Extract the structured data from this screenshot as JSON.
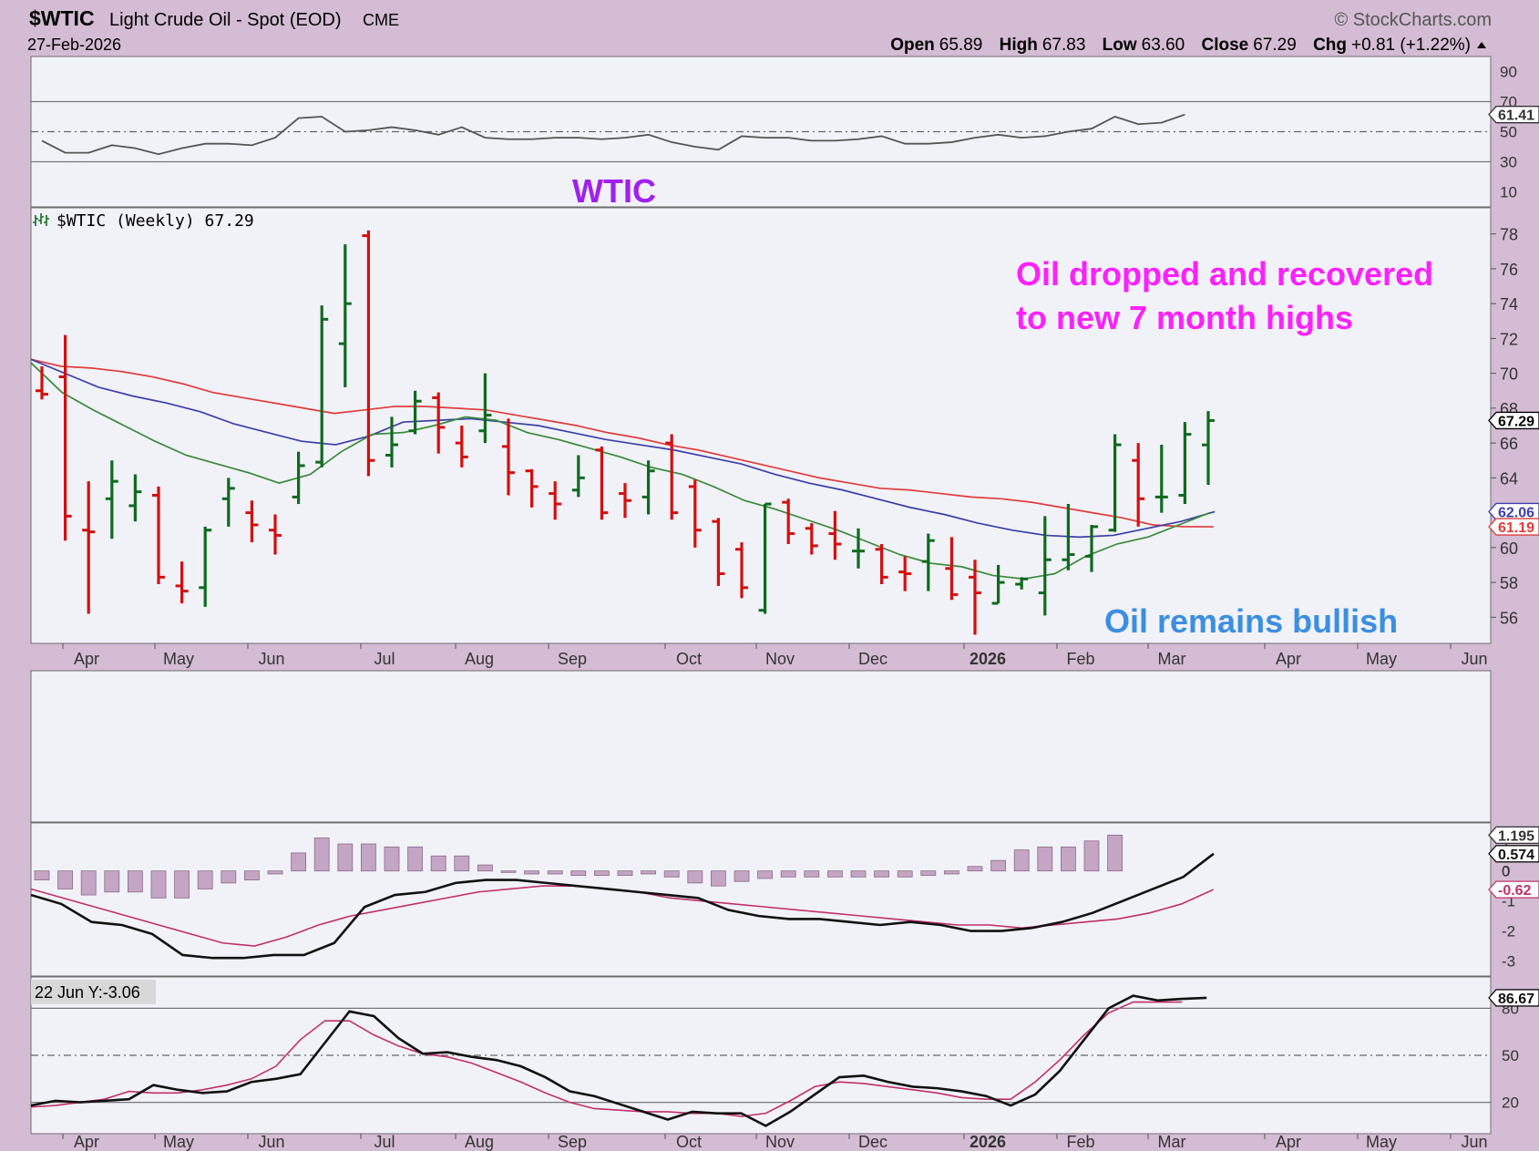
{
  "header": {
    "symbol": "$WTIC",
    "name": "Light Crude Oil - Spot (EOD)",
    "exchange": "CME",
    "copyright": "© StockCharts.com",
    "date": "27-Feb-2026",
    "ohlc_labels": [
      "Open",
      "High",
      "Low",
      "Close",
      "Chg"
    ],
    "ohlc_values": [
      "65.89",
      "67.83",
      "63.60",
      "67.29",
      "+0.81 (+1.22%)"
    ]
  },
  "colors": {
    "frame": "#d4bcd4",
    "panel": "#f1f1f8",
    "up": "#0e6b1e",
    "down": "#d40f0f",
    "ma_red": "#e03c3c",
    "ma_blue": "#3b3fa7",
    "ma_green": "#3a8a3a",
    "annot_purple": "#a020f0",
    "annot_magenta": "#ff20ff",
    "annot_blue": "#3b8ee0",
    "hist": "#c4a6c4"
  },
  "annotations": {
    "wtic": "WTIC",
    "oil_line1": "Oil dropped and recovered",
    "oil_line2": "to new 7 month highs",
    "bullish": "Oil remains bullish"
  },
  "price_panel_label": "$WTIC (Weekly) 67.29",
  "rsi_panel": {
    "ticks": [
      "90",
      "70",
      "50",
      "30",
      "10"
    ],
    "last_label": "61.41"
  },
  "macd_panel": {
    "ticks": [
      "1",
      "0",
      "-1",
      "-2",
      "-3"
    ],
    "labels": [
      "1.195",
      "0.574",
      "0",
      "-0.62"
    ]
  },
  "stoch_panel": {
    "tooltip": "22 Jun Y:-3.06",
    "ticks": [
      "80",
      "50",
      "20"
    ],
    "labels": [
      "86.67"
    ]
  },
  "price_axis": {
    "ticks": [
      "78",
      "76",
      "74",
      "72",
      "70",
      "68",
      "66",
      "64",
      "62",
      "60",
      "58",
      "56"
    ],
    "labels": [
      {
        "text": "67.29",
        "value": 67.29,
        "color": "#000000"
      },
      {
        "text": "62.06",
        "value": 62.06,
        "color": "#3b3fa7"
      },
      {
        "text": "61.19",
        "value": 61.19,
        "color": "#e03c3c"
      }
    ]
  },
  "x_axis": {
    "labels": [
      "Apr",
      "May",
      "Jun",
      "Jul",
      "Aug",
      "Sep",
      "Oct",
      "Nov",
      "Dec",
      "2026",
      "Feb",
      "Mar",
      "Apr",
      "May",
      "Jun"
    ]
  },
  "chart_data": [
    {
      "type": "line",
      "panel": "RSI",
      "ylim": [
        0,
        100
      ],
      "series": [
        {
          "values": [
            44,
            36,
            36,
            41,
            39,
            35,
            39,
            42,
            42,
            41,
            46,
            59,
            60,
            50,
            51,
            53,
            51,
            48,
            53,
            46,
            45,
            45,
            46,
            46,
            45,
            46,
            48,
            43,
            40,
            38,
            47,
            46,
            46,
            44,
            44,
            45,
            47,
            42,
            42,
            43,
            46,
            48,
            46,
            47,
            50,
            52,
            60,
            55,
            56,
            61.41
          ]
        }
      ]
    },
    {
      "type": "bar",
      "panel": "Price (weekly OHLC)",
      "ylim": [
        54.5,
        79.5
      ],
      "ohlc": [
        [
          69.0,
          70.4,
          68.5,
          68.8
        ],
        [
          69.8,
          72.2,
          60.4,
          61.8
        ],
        [
          61.0,
          63.8,
          56.2,
          60.9
        ],
        [
          62.8,
          65.0,
          60.5,
          63.8
        ],
        [
          62.4,
          64.2,
          61.5,
          63.2
        ],
        [
          63.0,
          63.5,
          57.9,
          58.3
        ],
        [
          57.8,
          59.2,
          56.8,
          57.5
        ],
        [
          57.7,
          61.2,
          56.6,
          61.0
        ],
        [
          62.8,
          64.0,
          61.2,
          63.4
        ],
        [
          62.0,
          62.7,
          60.3,
          61.3
        ],
        [
          61.0,
          61.9,
          59.6,
          60.7
        ],
        [
          62.9,
          65.5,
          62.5,
          64.7
        ],
        [
          64.9,
          73.9,
          64.6,
          73.1
        ],
        [
          71.7,
          77.4,
          69.2,
          74.0
        ],
        [
          77.9,
          78.2,
          64.1,
          65.0
        ],
        [
          65.3,
          67.5,
          64.6,
          65.9
        ],
        [
          66.7,
          69.0,
          66.5,
          68.4
        ],
        [
          68.6,
          68.9,
          65.4,
          66.9
        ],
        [
          66.0,
          67.0,
          64.6,
          65.2
        ],
        [
          66.7,
          70.0,
          66.0,
          67.6
        ],
        [
          65.8,
          67.4,
          63.0,
          64.3
        ],
        [
          64.4,
          64.5,
          62.3,
          63.5
        ],
        [
          63.1,
          63.8,
          61.6,
          62.5
        ],
        [
          63.3,
          65.3,
          62.9,
          64.0
        ],
        [
          65.6,
          65.8,
          61.6,
          62.0
        ],
        [
          63.1,
          63.7,
          61.7,
          62.7
        ],
        [
          62.9,
          65.0,
          61.9,
          64.4
        ],
        [
          66.0,
          66.5,
          61.6,
          62.0
        ],
        [
          63.5,
          63.9,
          60.0,
          61.0
        ],
        [
          61.5,
          61.7,
          57.8,
          58.5
        ],
        [
          59.9,
          60.3,
          57.1,
          57.7
        ],
        [
          56.4,
          62.5,
          56.2,
          62.5
        ],
        [
          62.6,
          62.8,
          60.2,
          60.8
        ],
        [
          61.1,
          61.4,
          59.6,
          60.1
        ],
        [
          60.8,
          62.1,
          59.3,
          60.2
        ],
        [
          59.8,
          61.1,
          58.8,
          59.8
        ],
        [
          59.9,
          60.2,
          57.9,
          58.3
        ],
        [
          58.6,
          59.5,
          57.5,
          58.5
        ],
        [
          59.2,
          60.8,
          57.5,
          60.4
        ],
        [
          58.8,
          60.6,
          57.0,
          57.3
        ],
        [
          58.3,
          59.3,
          55.0,
          57.4
        ],
        [
          56.8,
          59.0,
          56.8,
          58.0
        ],
        [
          57.9,
          58.3,
          57.6,
          58.2
        ],
        [
          57.4,
          61.8,
          56.1,
          59.3
        ],
        [
          59.3,
          62.5,
          58.7,
          59.6
        ],
        [
          59.5,
          61.3,
          58.6,
          61.2
        ],
        [
          61.0,
          66.5,
          60.9,
          65.9
        ],
        [
          65.0,
          66.0,
          61.2,
          62.8
        ],
        [
          62.9,
          65.9,
          62.0,
          62.9
        ],
        [
          63.0,
          67.2,
          62.5,
          66.5
        ],
        [
          65.89,
          67.83,
          63.6,
          67.29
        ]
      ],
      "series": [
        {
          "values": [
            70.8,
            70.4,
            70.3,
            70.1,
            69.8,
            69.4,
            68.9,
            68.6,
            68.3,
            68.0,
            67.7,
            67.9,
            68.1,
            68.1,
            68.0,
            67.9,
            67.6,
            67.3,
            67.0,
            66.6,
            66.3,
            65.9,
            65.6,
            65.2,
            64.8,
            64.4,
            64.0,
            63.7,
            63.4,
            63.3,
            63.1,
            62.9,
            62.8,
            62.6,
            62.3,
            62.0,
            61.7,
            61.3,
            61.2,
            61.19
          ]
        },
        {
          "values": [
            70.8,
            70.0,
            69.2,
            68.7,
            68.3,
            67.8,
            67.1,
            66.6,
            66.1,
            65.9,
            66.4,
            67.2,
            67.3,
            67.4,
            67.2,
            67.0,
            66.6,
            66.2,
            65.9,
            65.6,
            65.2,
            64.8,
            64.2,
            63.7,
            63.3,
            62.8,
            62.3,
            61.9,
            61.4,
            61.0,
            60.7,
            60.6,
            60.7,
            61.1,
            61.5,
            62.06
          ]
        },
        {
          "values": [
            70.6,
            68.9,
            67.9,
            67.0,
            66.1,
            65.3,
            64.8,
            64.3,
            63.7,
            64.2,
            65.5,
            66.5,
            66.6,
            67.0,
            67.5,
            67.3,
            66.6,
            66.2,
            65.7,
            65.2,
            64.6,
            64.2,
            63.5,
            62.7,
            62.2,
            61.6,
            61.0,
            60.3,
            59.6,
            59.1,
            58.9,
            58.4,
            58.2,
            58.5,
            59.5,
            60.2,
            60.6,
            61.3,
            62.0
          ]
        }
      ]
    },
    {
      "type": "line",
      "panel": "MACD",
      "ylim": [
        -3.5,
        1.6
      ],
      "series": [
        {
          "values": [
            -0.8,
            -1.1,
            -1.7,
            -1.8,
            -2.1,
            -2.8,
            -2.9,
            -2.9,
            -2.8,
            -2.8,
            -2.4,
            -1.2,
            -0.8,
            -0.7,
            -0.4,
            -0.3,
            -0.3,
            -0.4,
            -0.5,
            -0.6,
            -0.7,
            -0.8,
            -0.9,
            -1.3,
            -1.5,
            -1.6,
            -1.6,
            -1.7,
            -1.8,
            -1.7,
            -1.8,
            -2.0,
            -2.0,
            -1.9,
            -1.7,
            -1.4,
            -1.0,
            -0.6,
            -0.2,
            0.574
          ]
        },
        {
          "values": [
            -0.6,
            -0.9,
            -1.2,
            -1.5,
            -1.8,
            -2.1,
            -2.4,
            -2.5,
            -2.2,
            -1.8,
            -1.5,
            -1.3,
            -1.1,
            -0.9,
            -0.7,
            -0.6,
            -0.5,
            -0.5,
            -0.6,
            -0.7,
            -0.9,
            -1.0,
            -1.1,
            -1.2,
            -1.3,
            -1.4,
            -1.5,
            -1.6,
            -1.7,
            -1.8,
            -1.8,
            -1.9,
            -1.8,
            -1.7,
            -1.6,
            -1.4,
            -1.1,
            -0.62
          ]
        },
        {
          "values": [
            -0.3,
            -0.6,
            -0.8,
            -0.7,
            -0.7,
            -0.9,
            -0.9,
            -0.6,
            -0.4,
            -0.3,
            -0.1,
            0.6,
            1.1,
            0.9,
            0.9,
            0.8,
            0.8,
            0.5,
            0.5,
            0.2,
            -0.05,
            -0.1,
            -0.1,
            -0.15,
            -0.15,
            -0.15,
            -0.1,
            -0.2,
            -0.4,
            -0.5,
            -0.35,
            -0.25,
            -0.2,
            -0.2,
            -0.2,
            -0.2,
            -0.2,
            -0.2,
            -0.15,
            -0.1,
            0.15,
            0.35,
            0.7,
            0.8,
            0.8,
            1.0,
            1.195
          ]
        }
      ]
    },
    {
      "type": "line",
      "panel": "Stochastic",
      "ylim": [
        0,
        100
      ],
      "series": [
        {
          "values": [
            18,
            21,
            20,
            21,
            22,
            31,
            28,
            26,
            27,
            33,
            35,
            38,
            58,
            78,
            75,
            61,
            51,
            52,
            49,
            47,
            43,
            36,
            27,
            24,
            19,
            14,
            9,
            14,
            13,
            13,
            5,
            14,
            25,
            36,
            37,
            33,
            30,
            29,
            27,
            24,
            18,
            25,
            40,
            60,
            80,
            88,
            85,
            86,
            86.67
          ]
        },
        {
          "values": [
            17,
            18,
            20,
            22,
            27,
            26,
            26,
            28,
            31,
            35,
            43,
            60,
            72,
            72,
            63,
            56,
            51,
            49,
            45,
            39,
            33,
            26,
            20,
            16,
            15,
            14,
            14,
            13,
            13,
            11,
            13,
            21,
            30,
            33,
            32,
            30,
            28,
            26,
            23,
            22,
            22,
            33,
            47,
            63,
            77,
            84,
            84,
            84
          ]
        }
      ]
    }
  ]
}
